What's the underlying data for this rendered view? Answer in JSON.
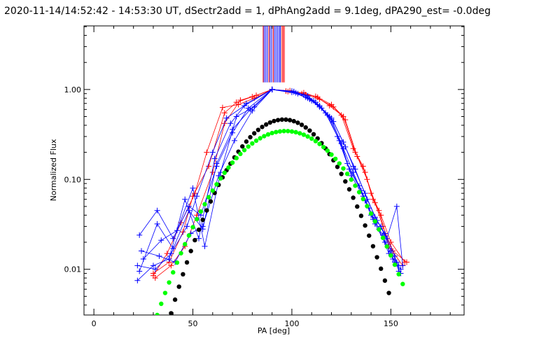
{
  "chart_data": {
    "type": "line",
    "title": "2020-11-14/14:52:42 - 14:53:30 UT, dSectr2add = 1, dPhAng2add = 9.1deg, dPA290_est= -0.0deg",
    "xlabel": "PA [deg]",
    "ylabel": "Normalized Flux",
    "xlim": [
      -5,
      187
    ],
    "ylim": [
      0.0031,
      5.1
    ],
    "yscale": "log",
    "grid": false,
    "x_ticks": [
      {
        "value": 0,
        "label": "0"
      },
      {
        "value": 50,
        "label": "50"
      },
      {
        "value": 100,
        "label": "100"
      },
      {
        "value": 150,
        "label": "150"
      }
    ],
    "y_ticks": [
      {
        "value": 0.01,
        "label": "0.01"
      },
      {
        "value": 0.1,
        "label": "0.10"
      },
      {
        "value": 1.0,
        "label": "1.00"
      }
    ],
    "colors": {
      "red": "#ff0000",
      "blue": "#0000ff",
      "black": "#000000",
      "green": "#00ff00"
    },
    "series": [
      {
        "color": "red",
        "style": "line+plus",
        "x": [
          30,
          38,
          45,
          50,
          58,
          66,
          72,
          80,
          90,
          98,
          106,
          113,
          120,
          126,
          132,
          137,
          141,
          145,
          150,
          157
        ],
        "y": [
          0.009,
          0.012,
          0.026,
          0.065,
          0.14,
          0.55,
          0.72,
          0.83,
          1.0,
          0.95,
          0.92,
          0.82,
          0.68,
          0.5,
          0.2,
          0.12,
          0.06,
          0.04,
          0.02,
          0.012
        ]
      },
      {
        "color": "red",
        "style": "line+plus",
        "x": [
          31,
          39,
          46,
          52,
          60,
          66,
          74,
          82,
          90,
          99,
          107,
          114,
          121,
          127,
          133,
          138,
          142,
          146,
          151,
          158
        ],
        "y": [
          0.008,
          0.011,
          0.018,
          0.04,
          0.12,
          0.42,
          0.76,
          0.86,
          1.0,
          0.97,
          0.88,
          0.78,
          0.64,
          0.46,
          0.18,
          0.1,
          0.055,
          0.03,
          0.016,
          0.012
        ]
      },
      {
        "color": "red",
        "style": "line+plus",
        "x": [
          30,
          37,
          44,
          51,
          57,
          65,
          73,
          81,
          90,
          97,
          105,
          112,
          119,
          125,
          131,
          136,
          140,
          144,
          149,
          156
        ],
        "y": [
          0.0085,
          0.015,
          0.033,
          0.07,
          0.2,
          0.63,
          0.68,
          0.8,
          1.0,
          0.96,
          0.9,
          0.84,
          0.66,
          0.52,
          0.22,
          0.14,
          0.07,
          0.045,
          0.018,
          0.011
        ]
      },
      {
        "color": "blue",
        "style": "line+plus",
        "x": [
          22,
          31,
          39,
          47,
          52,
          60,
          67,
          76,
          90,
          100,
          107,
          112,
          118,
          124,
          129,
          135,
          140,
          145,
          150,
          154
        ],
        "y": [
          0.011,
          0.01,
          0.015,
          0.03,
          0.065,
          0.2,
          0.48,
          0.66,
          1.0,
          0.93,
          0.82,
          0.72,
          0.52,
          0.27,
          0.13,
          0.075,
          0.04,
          0.03,
          0.016,
          0.011
        ]
      },
      {
        "color": "blue",
        "style": "line+plus",
        "x": [
          23,
          32,
          40,
          48,
          54,
          62,
          70,
          78,
          90,
          101,
          108,
          113,
          119,
          125,
          130,
          136,
          141,
          146,
          151,
          155
        ],
        "y": [
          0.024,
          0.045,
          0.022,
          0.05,
          0.04,
          0.14,
          0.33,
          0.62,
          1.0,
          0.95,
          0.85,
          0.68,
          0.5,
          0.25,
          0.11,
          0.065,
          0.036,
          0.024,
          0.013,
          0.01
        ]
      },
      {
        "color": "blue",
        "style": "line+plus",
        "x": [
          24,
          33,
          41,
          49,
          55,
          63,
          71,
          80,
          90,
          102,
          109,
          114,
          120,
          126,
          131,
          137,
          142,
          147,
          152,
          155
        ],
        "y": [
          0.016,
          0.014,
          0.012,
          0.025,
          0.03,
          0.11,
          0.27,
          0.58,
          1.0,
          0.92,
          0.78,
          0.64,
          0.46,
          0.22,
          0.12,
          0.058,
          0.032,
          0.02,
          0.012,
          0.009
        ]
      },
      {
        "color": "blue",
        "style": "line+plus",
        "x": [
          22,
          30,
          38,
          46,
          53,
          61,
          69,
          77,
          90,
          100,
          106,
          111,
          117,
          123,
          128,
          134,
          139,
          144,
          149,
          153
        ],
        "y": [
          0.0075,
          0.011,
          0.013,
          0.06,
          0.022,
          0.17,
          0.42,
          0.7,
          1.0,
          0.96,
          0.87,
          0.75,
          0.55,
          0.3,
          0.15,
          0.085,
          0.048,
          0.028,
          0.015,
          0.012
        ]
      },
      {
        "color": "blue",
        "style": "line+plus",
        "x": [
          25,
          34,
          42,
          50,
          56,
          64,
          72,
          81,
          90,
          103,
          110,
          115,
          121,
          127,
          132,
          138,
          143,
          148,
          153,
          156
        ],
        "y": [
          0.013,
          0.021,
          0.027,
          0.08,
          0.018,
          0.12,
          0.5,
          0.64,
          1.0,
          0.9,
          0.75,
          0.62,
          0.44,
          0.23,
          0.13,
          0.06,
          0.035,
          0.022,
          0.05,
          0.011
        ]
      },
      {
        "color": "blue",
        "style": "line+plus",
        "x": [
          23,
          32,
          40,
          48,
          55,
          62,
          70,
          79,
          90,
          101,
          108,
          114,
          120,
          126,
          131,
          137,
          142,
          147,
          152,
          154
        ],
        "y": [
          0.0095,
          0.032,
          0.017,
          0.045,
          0.028,
          0.15,
          0.36,
          0.6,
          1.0,
          0.94,
          0.8,
          0.66,
          0.48,
          0.26,
          0.14,
          0.07,
          0.038,
          0.025,
          0.014,
          0.0095
        ]
      },
      {
        "color": "black",
        "style": "dots",
        "x": [
          39,
          41,
          43,
          45,
          47,
          49,
          51,
          53,
          55,
          57,
          59,
          61,
          63,
          65,
          67,
          69,
          71,
          73,
          75,
          77,
          79,
          81,
          83,
          85,
          87,
          89,
          91,
          93,
          95,
          97,
          99,
          101,
          103,
          105,
          107,
          109,
          111,
          113,
          115,
          117,
          119,
          121,
          123,
          125,
          127,
          129,
          131,
          133,
          135,
          137,
          139,
          141,
          143,
          145,
          147,
          149
        ],
        "y": [
          0.00324,
          0.00459,
          0.0064,
          0.0088,
          0.01193,
          0.01596,
          0.02109,
          0.02752,
          0.03548,
          0.04519,
          0.05686,
          0.07068,
          0.08682,
          0.10537,
          0.12638,
          0.14983,
          0.17557,
          0.20337,
          0.23284,
          0.26348,
          0.29463,
          0.32554,
          0.35537,
          0.3832,
          0.40811,
          0.42922,
          0.44577,
          0.45711,
          0.46276,
          0.46245,
          0.45617,
          0.4441,
          0.42665,
          0.40444,
          0.37825,
          0.34897,
          0.31762,
          0.28522,
          0.25275,
          0.22111,
          0.19105,
          0.16314,
          0.13772,
          0.11497,
          0.09492,
          0.07748,
          0.0625,
          0.04985,
          0.03932,
          0.03068,
          0.02366,
          0.01804,
          0.0136,
          0.01015,
          0.00748,
          0.00545
        ]
      },
      {
        "color": "green",
        "style": "dots",
        "x": [
          32,
          34,
          36,
          38,
          40,
          42,
          44,
          46,
          48,
          50,
          52,
          54,
          56,
          58,
          60,
          62,
          64,
          66,
          68,
          70,
          72,
          74,
          76,
          78,
          80,
          82,
          84,
          86,
          88,
          90,
          92,
          94,
          96,
          98,
          100,
          102,
          104,
          106,
          108,
          110,
          112,
          114,
          116,
          118,
          120,
          122,
          124,
          126,
          128,
          130,
          132,
          134,
          136,
          138,
          140,
          142,
          144,
          146,
          148,
          150,
          152,
          154,
          156
        ],
        "y": [
          0.0031,
          0.00413,
          0.00545,
          0.00713,
          0.00924,
          0.01186,
          0.01508,
          0.01901,
          0.02375,
          0.02941,
          0.0361,
          0.04392,
          0.05297,
          0.06332,
          0.07504,
          0.08814,
          0.10262,
          0.11842,
          0.13544,
          0.15353,
          0.17248,
          0.19204,
          0.21189,
          0.2317,
          0.25107,
          0.26961,
          0.28691,
          0.30257,
          0.31621,
          0.32751,
          0.33617,
          0.34198,
          0.34479,
          0.34452,
          0.34118,
          0.33487,
          0.32576,
          0.31408,
          0.30012,
          0.2842,
          0.26671,
          0.24803,
          0.22858,
          0.20874,
          0.18887,
          0.16931,
          0.15037,
          0.13228,
          0.11527,
          0.09949,
          0.08508,
          0.07209,
          0.06055,
          0.05043,
          0.04166,
          0.03414,
          0.02776,
          0.0224,
          0.01793,
          0.01425,
          0.01125,
          0.00882,
          0.00686
        ]
      }
    ],
    "vertical_lines": {
      "y_from": 1.2,
      "y_to": 5.1,
      "lines": [
        {
          "x": 85.5,
          "color": "red"
        },
        {
          "x": 86.0,
          "color": "blue"
        },
        {
          "x": 86.8,
          "color": "blue"
        },
        {
          "x": 87.6,
          "color": "blue"
        },
        {
          "x": 88.4,
          "color": "red"
        },
        {
          "x": 89.0,
          "color": "blue"
        },
        {
          "x": 89.8,
          "color": "blue"
        },
        {
          "x": 90.6,
          "color": "red"
        },
        {
          "x": 91.2,
          "color": "blue"
        },
        {
          "x": 92.0,
          "color": "blue"
        },
        {
          "x": 92.8,
          "color": "blue"
        },
        {
          "x": 93.6,
          "color": "blue"
        },
        {
          "x": 94.2,
          "color": "blue"
        },
        {
          "x": 95.0,
          "color": "red"
        },
        {
          "x": 95.6,
          "color": "red"
        },
        {
          "x": 96.2,
          "color": "red"
        }
      ]
    }
  }
}
